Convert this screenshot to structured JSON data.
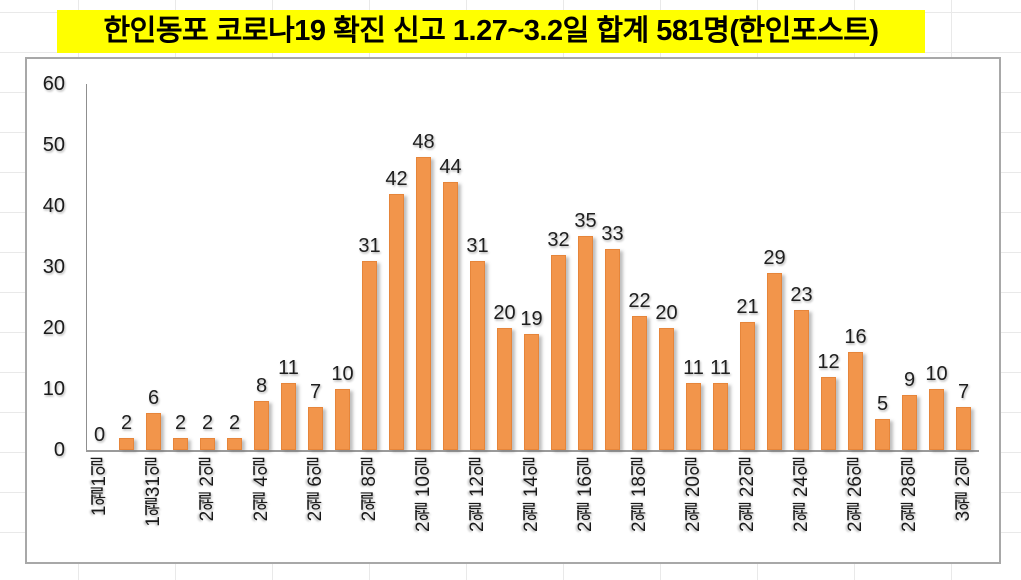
{
  "title": {
    "text": "한인동포 코로나19 확진 신고 1.27~3.2일 합계 581명(한인포스트)",
    "highlight_color": "#FFFF00",
    "text_color": "#000000"
  },
  "chart_data": {
    "type": "bar",
    "values": [
      0,
      2,
      6,
      2,
      2,
      2,
      8,
      11,
      7,
      10,
      31,
      42,
      48,
      44,
      31,
      20,
      19,
      32,
      35,
      33,
      22,
      20,
      11,
      11,
      21,
      29,
      23,
      12,
      16,
      5,
      9,
      10,
      7
    ],
    "data_labels_shown": true,
    "x_tick_labels": [
      "1월1일",
      "1월31일",
      "2월 2일",
      "2월 4일",
      "2월 6일",
      "2월 8일",
      "2월 10일",
      "2월 12일",
      "2월 14일",
      "2월 16일",
      "2월 18일",
      "2월 20일",
      "2월 22일",
      "2월 24일",
      "2월 26일",
      "2월 28일",
      "3월 2일"
    ],
    "x_tick_every": 2,
    "y_ticks": [
      0,
      10,
      20,
      30,
      40,
      50,
      60
    ],
    "ylim": [
      0,
      60
    ],
    "grid": "off",
    "legend": "none",
    "bar_color": "#F2954B",
    "bar_border_color": "#E6853A",
    "axis_color": "#8F8F8F"
  }
}
